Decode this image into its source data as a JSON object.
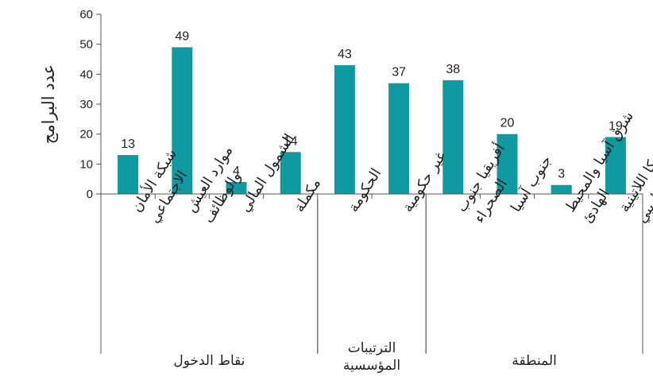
{
  "chart_data": {
    "type": "bar",
    "ylabel": "عدد البرامج",
    "ylim": [
      0,
      60
    ],
    "yticks": [
      0,
      10,
      20,
      30,
      40,
      50,
      60
    ],
    "grid": false,
    "bar_color": "#0e9aa0",
    "categories": [
      [
        "شبكة الأمان",
        "الاجتماعي"
      ],
      [
        "موارد العيش",
        "والوظائف"
      ],
      [
        "الشمول المالي"
      ],
      [
        "مكملة"
      ],
      [
        "الحكومة"
      ],
      [
        "غير حكومية"
      ],
      [
        "أفريقيا جنوب",
        "الصحراء"
      ],
      [
        "جنوب آسيا"
      ],
      [
        "شرق آسيا والمحيط",
        "الهادئ"
      ],
      [
        "أمريكا اللاتينية",
        "والبحر الكاريبي"
      ]
    ],
    "values": [
      13,
      49,
      4,
      14,
      43,
      37,
      38,
      20,
      3,
      19
    ],
    "groups": [
      {
        "label": [
          "نقاط الدخول"
        ],
        "start": 0,
        "end": 3
      },
      {
        "label": [
          "الترتيبات",
          "المؤسسية"
        ],
        "start": 4,
        "end": 5
      },
      {
        "label": [
          "المنطقة"
        ],
        "start": 6,
        "end": 9
      }
    ]
  }
}
